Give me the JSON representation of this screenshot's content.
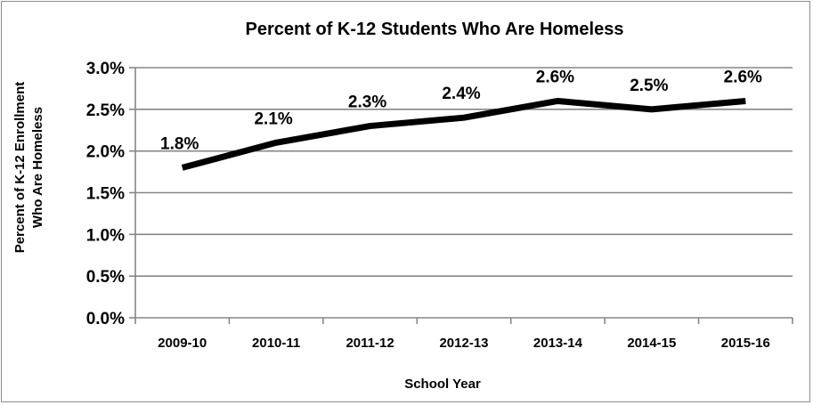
{
  "chart_data": {
    "type": "line",
    "title": "Percent of K-12 Students Who Are Homeless",
    "xlabel": "School Year",
    "ylabel_lines": [
      "Percent of K-12 Enrollment",
      "Who Are Homeless"
    ],
    "categories": [
      "2009-10",
      "2010-11",
      "2011-12",
      "2012-13",
      "2013-14",
      "2014-15",
      "2015-16"
    ],
    "values": [
      1.8,
      2.1,
      2.3,
      2.4,
      2.6,
      2.5,
      2.6
    ],
    "data_labels": [
      "1.8%",
      "2.1%",
      "2.3%",
      "2.4%",
      "2.6%",
      "2.5%",
      "2.6%"
    ],
    "ylim": [
      0,
      3.0
    ],
    "yticks": [
      0,
      0.5,
      1.0,
      1.5,
      2.0,
      2.5,
      3.0
    ],
    "ytick_labels": [
      "0.0%",
      "0.5%",
      "1.0%",
      "1.5%",
      "2.0%",
      "2.5%",
      "3.0%"
    ],
    "grid": "horizontal",
    "line_color": "#000000",
    "grid_color": "#868686"
  }
}
